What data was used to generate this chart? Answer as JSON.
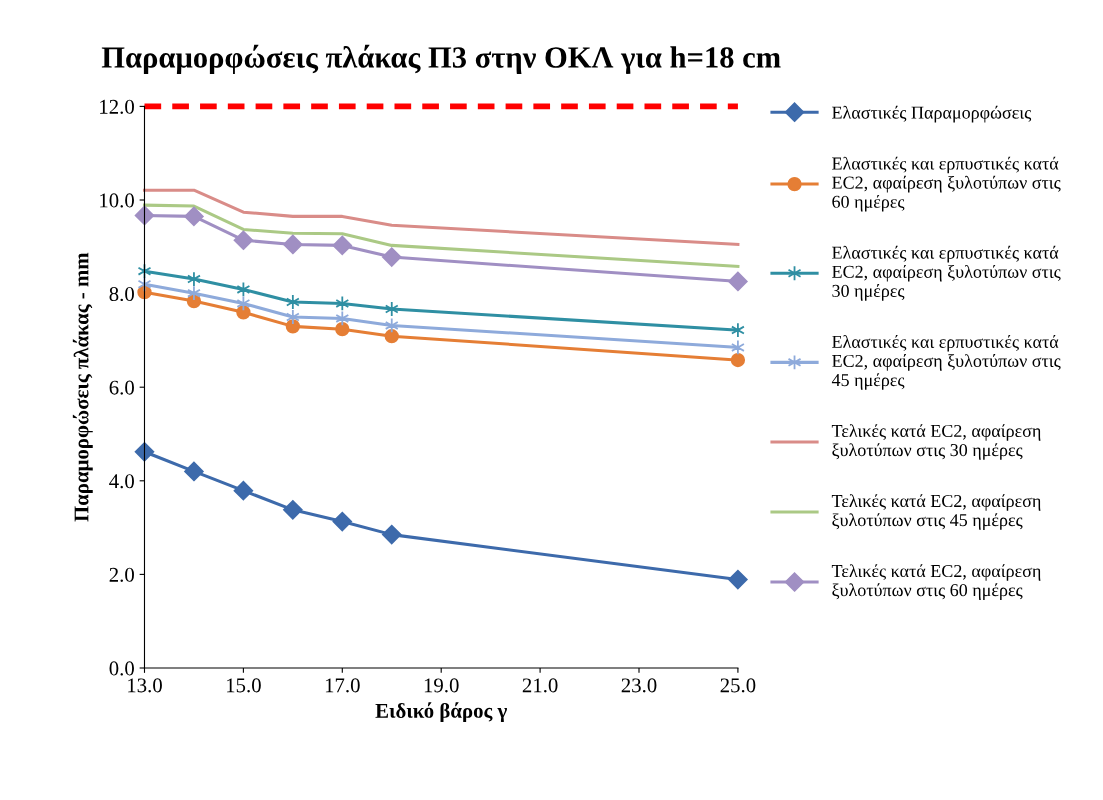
{
  "chart_data": {
    "type": "line",
    "title": "Παραμορφώσεις πλάκας Π3 στην ΟΚΛ για h=18 cm",
    "xlabel": "Ειδικό βάρος γ",
    "ylabel": "Παραμορφώσεις πλάκας - mm",
    "x": [
      13,
      14,
      15,
      16,
      17,
      18,
      25
    ],
    "series": [
      {
        "name": "Ελαστικές Παραμορφώσεις",
        "color": "#3d6aab",
        "marker": "diamond",
        "values": [
          4.62,
          4.2,
          3.79,
          3.38,
          3.13,
          2.85,
          1.89
        ]
      },
      {
        "name": "Ελαστικές και ερπυστικές κατά EC2, αφαίρεση ξυλοτύπων στις 60 ημέρες",
        "color": "#e57e35",
        "marker": "circle",
        "values": [
          8.03,
          7.84,
          7.6,
          7.3,
          7.24,
          7.09,
          6.58
        ]
      },
      {
        "name": "Ελαστικές και ερπυστικές κατά EC2, αφαίρεση ξυλοτύπων στις 30 ημέρες",
        "color": "#2f8fa3",
        "marker": "cross",
        "values": [
          8.48,
          8.31,
          8.09,
          7.82,
          7.79,
          7.67,
          7.22
        ]
      },
      {
        "name": "Ελαστικές και ερπυστικές κατά EC2, αφαίρεση ξυλοτύπων στις 45 ημέρες",
        "color": "#8eaadb",
        "marker": "cross",
        "values": [
          8.2,
          8.01,
          7.79,
          7.5,
          7.47,
          7.32,
          6.85
        ]
      },
      {
        "name": "Τελικές κατά EC2, αφαίρεση ξυλοτύπων στις 30 ημέρες",
        "color": "#d98c88",
        "marker": "none",
        "values": [
          10.21,
          10.21,
          9.74,
          9.65,
          9.65,
          9.46,
          9.05
        ]
      },
      {
        "name": "Τελικές κατά EC2, αφαίρεση ξυλοτύπων στις 45 ημέρες",
        "color": "#abc985",
        "marker": "none",
        "values": [
          9.89,
          9.87,
          9.37,
          9.29,
          9.28,
          9.03,
          8.58
        ]
      },
      {
        "name": "Τελικές κατά EC2, αφαίρεση ξυλοτύπων στις 60 ημέρες",
        "color": "#a08fc3",
        "marker": "diamond",
        "values": [
          9.67,
          9.65,
          9.14,
          9.05,
          9.03,
          8.78,
          8.26
        ]
      }
    ],
    "ref_lines": [
      {
        "axis": "y",
        "value": 12,
        "label": null,
        "color": "#ff0000",
        "line_style": "dashed"
      }
    ],
    "xlim": [
      13,
      25
    ],
    "xticks": [
      {
        "value": 13,
        "label": "13.0"
      },
      {
        "value": 15,
        "label": "15.0"
      },
      {
        "value": 17,
        "label": "17.0"
      },
      {
        "value": 19,
        "label": "19.0"
      },
      {
        "value": 21,
        "label": "21.0"
      },
      {
        "value": 23,
        "label": "23.0"
      },
      {
        "value": 25,
        "label": "25.0"
      }
    ],
    "ylim": [
      0,
      12
    ],
    "yticks": [
      {
        "value": 0,
        "label": "0.0"
      },
      {
        "value": 2,
        "label": "2.0"
      },
      {
        "value": 4,
        "label": "4.0"
      },
      {
        "value": 6,
        "label": "6.0"
      },
      {
        "value": 8,
        "label": "8.0"
      },
      {
        "value": 10,
        "label": "10.0"
      },
      {
        "value": 12,
        "label": "12.0"
      }
    ],
    "grid": false,
    "legend": "right",
    "line_style": "solid"
  }
}
